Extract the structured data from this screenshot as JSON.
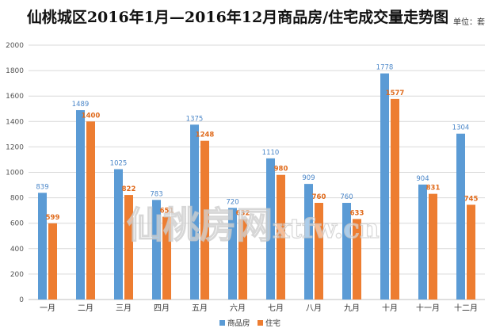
{
  "chart_data": {
    "type": "bar",
    "title": "仙桃城区2016年1月—2016年12月商品房/住宅成交量走势图",
    "unit_label": "单位：套",
    "categories": [
      "一月",
      "二月",
      "三月",
      "四月",
      "五月",
      "六月",
      "七月",
      "八月",
      "九月",
      "十月",
      "十一月",
      "十二月"
    ],
    "series": [
      {
        "name": "商品房",
        "color": "#5b9bd5",
        "values": [
          839,
          1489,
          1025,
          783,
          1375,
          720,
          1110,
          909,
          760,
          1778,
          904,
          1304
        ]
      },
      {
        "name": "住宅",
        "color": "#ed7d31",
        "values": [
          599,
          1400,
          822,
          651,
          1248,
          632,
          980,
          760,
          633,
          1577,
          831,
          745
        ]
      }
    ],
    "ylim": [
      0,
      2000
    ],
    "yticks": [
      0,
      200,
      400,
      600,
      800,
      1000,
      1200,
      1400,
      1600,
      1800,
      2000
    ],
    "grid": true,
    "legend_position": "bottom-center"
  },
  "watermark": {
    "chinese": "仙桃房网",
    "latin": "xtfw.cn"
  }
}
